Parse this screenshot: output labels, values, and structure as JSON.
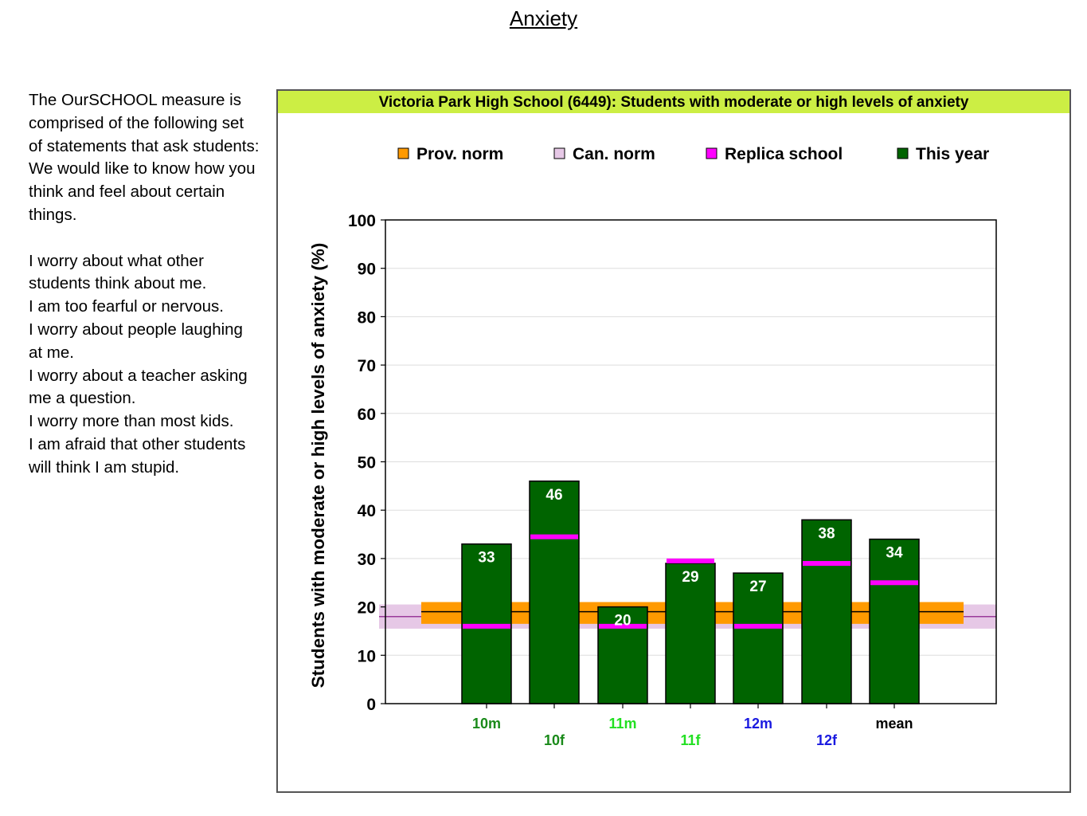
{
  "page": {
    "title": "Anxiety",
    "description": [
      "The OurSCHOOL measure is comprised of the following set of statements that ask students: We would like to know how you think and feel about certain things.",
      "",
      "I worry about what other students think about me.",
      "I am too fearful or nervous.",
      "I worry about people laughing at me.",
      "I worry about a teacher asking me a question.",
      "I worry more than most kids.",
      "I am afraid that other students will think I am stupid."
    ]
  },
  "chart_data": {
    "type": "bar",
    "title": "Victoria Park High School (6449): Students with moderate or high levels of anxiety",
    "ylabel": "Students with moderate or high levels of anxiety (%)",
    "xlabel": "",
    "ylim": [
      0,
      100
    ],
    "yticks": [
      0,
      10,
      20,
      30,
      40,
      50,
      60,
      70,
      80,
      90,
      100
    ],
    "grid": true,
    "legend_position": "top",
    "categories": [
      "10m",
      "10f",
      "11m",
      "11f",
      "12m",
      "12f",
      "mean"
    ],
    "category_colors": [
      "#1a8a1a",
      "#1a8a1a",
      "#22e022",
      "#22e022",
      "#1a1ae0",
      "#1a1ae0",
      "#000000"
    ],
    "legend": [
      {
        "label": "Prov. norm",
        "color": "#ff9a00"
      },
      {
        "label": "Can. norm",
        "color": "#e6c8e6"
      },
      {
        "label": "Replica school",
        "color": "#ff00ff"
      },
      {
        "label": "This year",
        "color": "#006400"
      }
    ],
    "series": [
      {
        "name": "This year",
        "values": [
          33,
          46,
          20,
          29,
          27,
          38,
          34
        ],
        "color": "#006400"
      },
      {
        "name": "Replica school",
        "values": [
          16,
          34.5,
          16,
          29.5,
          16,
          29,
          25
        ],
        "color": "#ff00ff"
      }
    ],
    "prov_norm": {
      "value": 19,
      "band": [
        16.5,
        21
      ]
    },
    "can_norm": {
      "value": 18,
      "band": [
        15.5,
        20.5
      ]
    },
    "colors": {
      "title_bar": "#ccee44",
      "bar_fill": "#006400",
      "prov_band": "#ff9a00",
      "can_band": "#e6c8e6",
      "can_line": "#9a3a9a",
      "replica": "#ff00ff",
      "grid": "#dddddd"
    }
  }
}
